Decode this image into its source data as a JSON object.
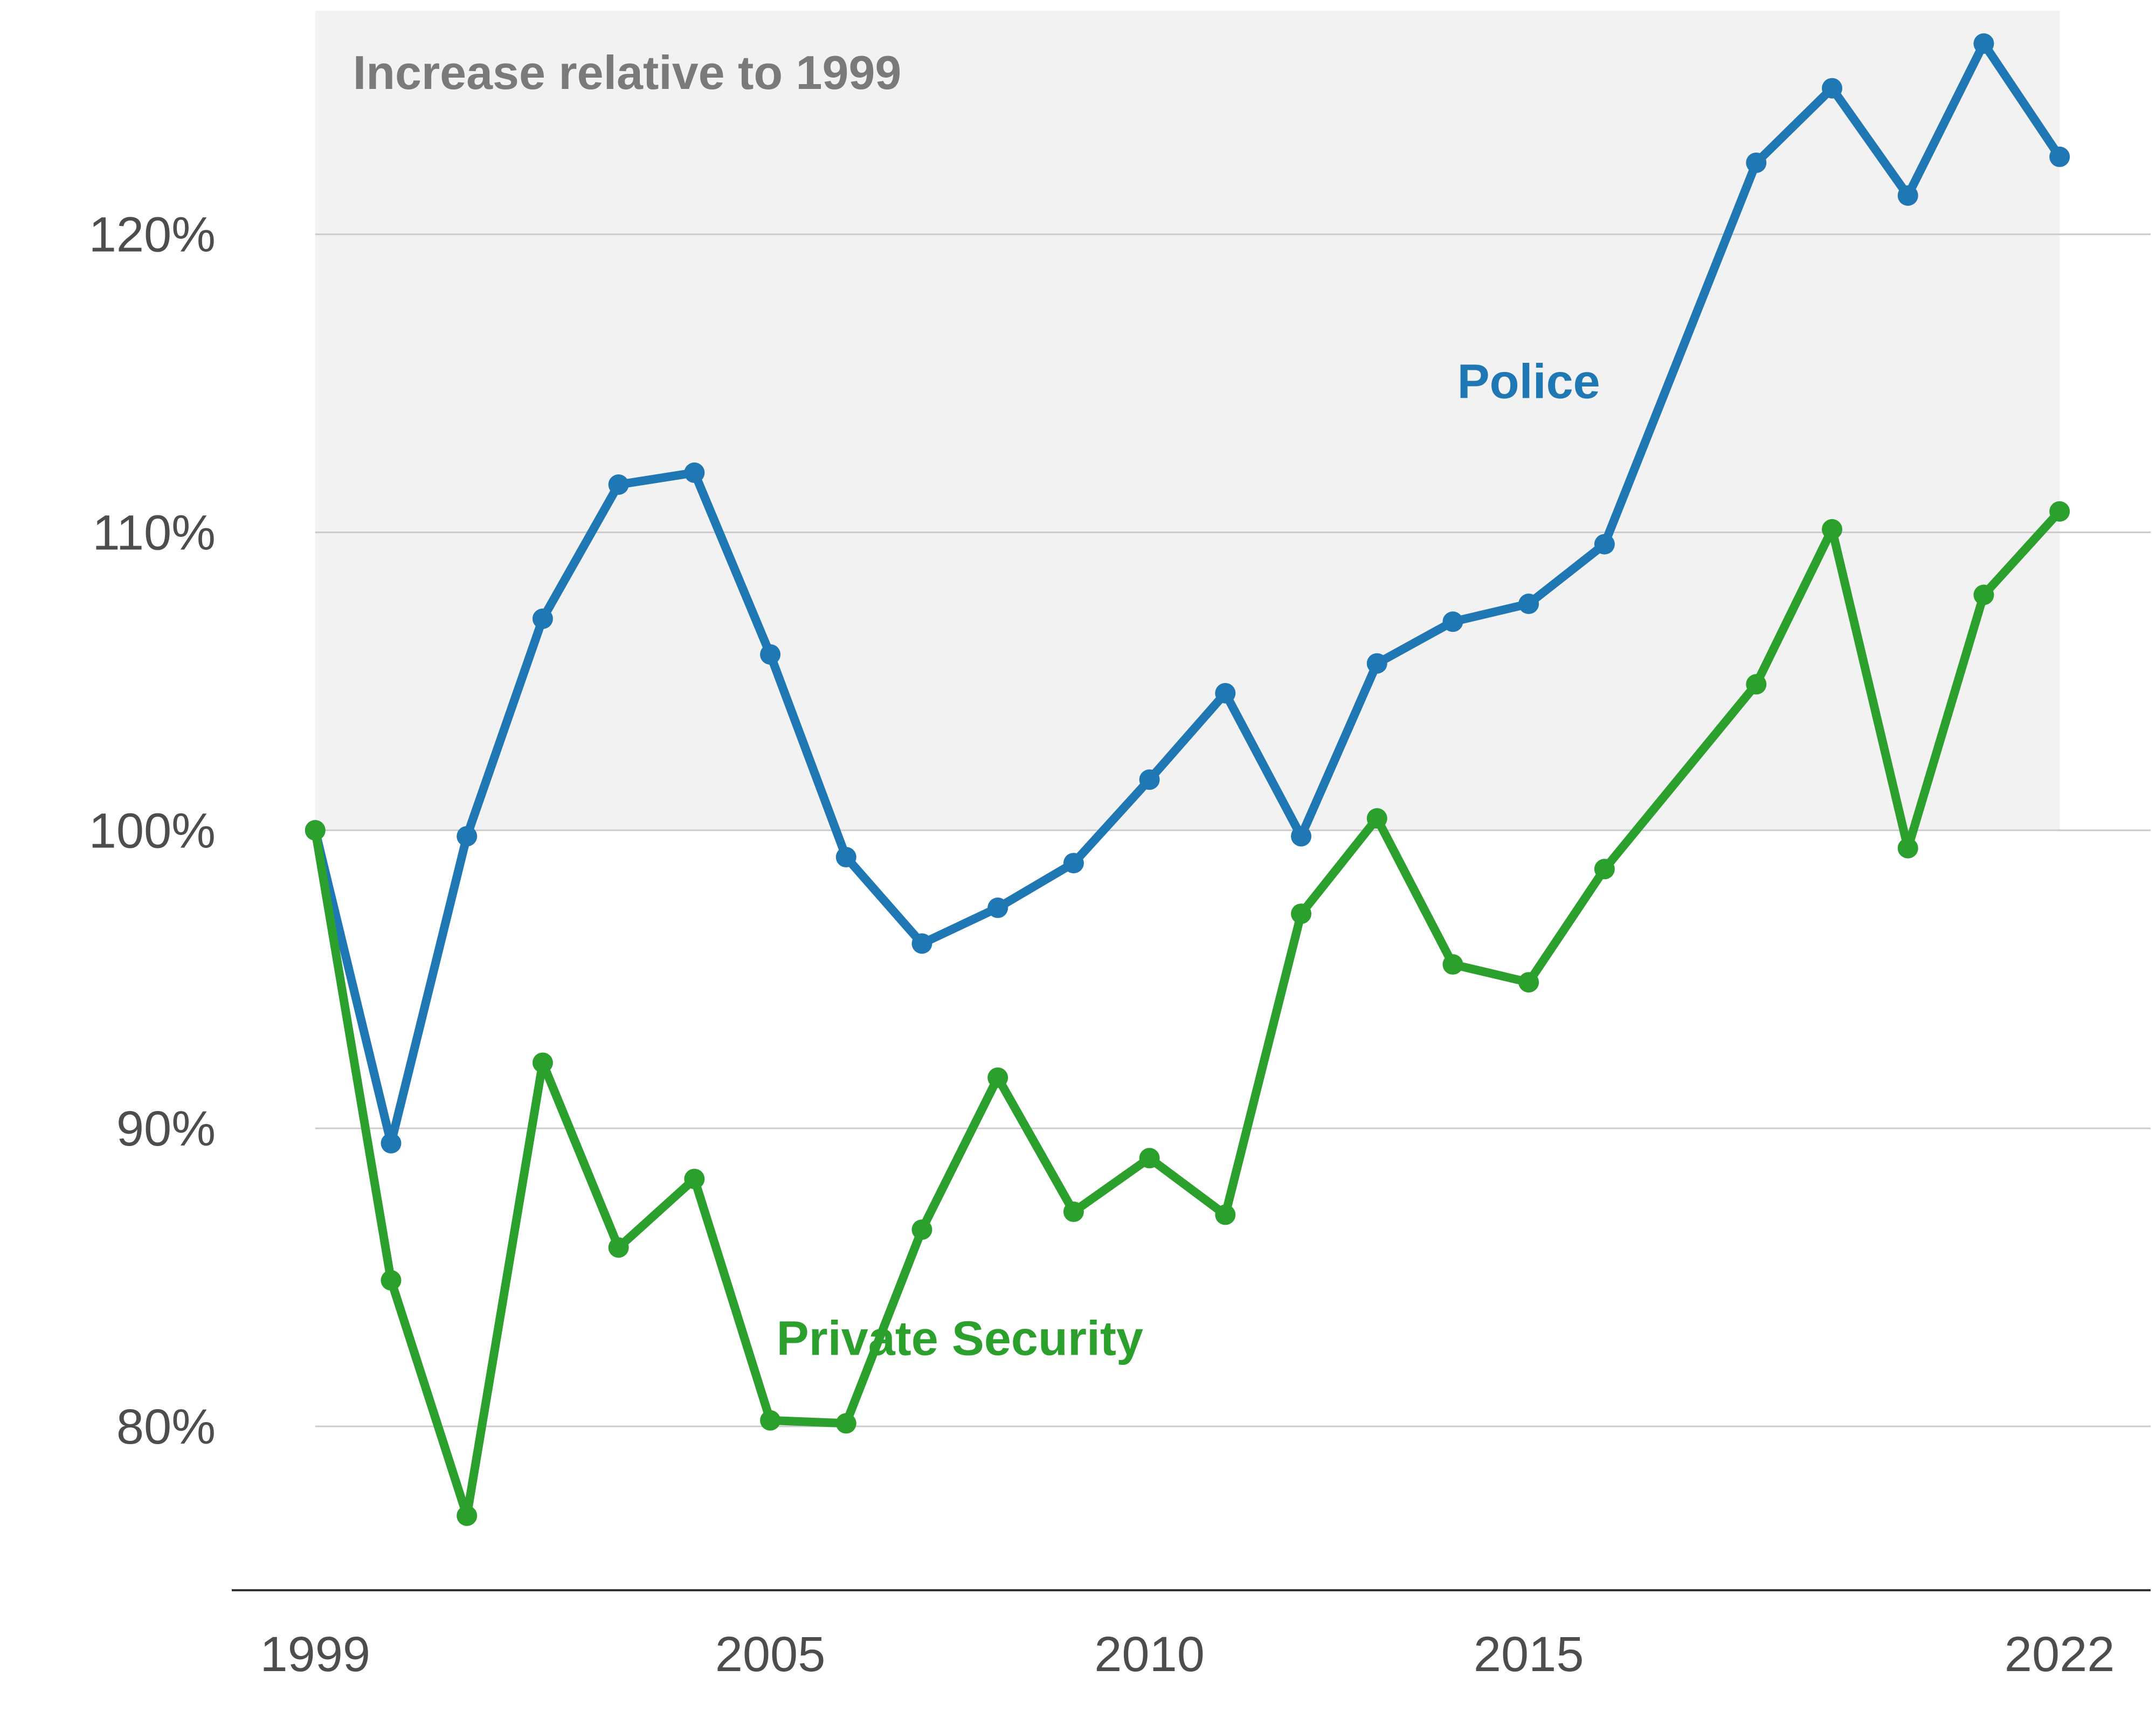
{
  "chart_data": {
    "type": "line",
    "region_label": "Increase relative to 1999",
    "x": [
      1999,
      2000,
      2001,
      2002,
      2003,
      2004,
      2005,
      2006,
      2007,
      2008,
      2009,
      2010,
      2011,
      2012,
      2013,
      2014,
      2015,
      2016,
      2018,
      2019,
      2020,
      2021,
      2022
    ],
    "x_ticks": [
      "1999",
      "2005",
      "2010",
      "2015",
      "2022"
    ],
    "y_ticks": [
      "80%",
      "90%",
      "100%",
      "110%",
      "120%"
    ],
    "ylim": [
      74.5,
      127.5
    ],
    "xlim": [
      1997.9,
      2023.2
    ],
    "grid": "horizontal",
    "highlight_band": {
      "from_x": 1999,
      "to_x": 2022,
      "from_y": 100,
      "to_y": 127.5
    },
    "series": [
      {
        "name": "Police",
        "color": "#1f77b4",
        "values": [
          100,
          89.5,
          99.8,
          107.1,
          111.6,
          112.0,
          105.9,
          99.1,
          96.2,
          97.4,
          98.9,
          101.7,
          104.6,
          99.8,
          105.6,
          107.0,
          107.6,
          109.6,
          122.4,
          124.9,
          121.3,
          126.4,
          122.6
        ]
      },
      {
        "name": "Private Security",
        "color": "#2ca02c",
        "values": [
          100,
          84.9,
          77.0,
          92.2,
          86.0,
          88.3,
          80.2,
          80.1,
          86.6,
          91.7,
          87.2,
          89.0,
          87.1,
          97.2,
          100.4,
          95.5,
          94.9,
          98.7,
          104.9,
          110.1,
          99.4,
          107.9,
          110.7
        ]
      }
    ],
    "colors": {
      "band": "#f2f2f2",
      "grid": "#cccccc",
      "axis": "#4d4d4d",
      "text": "#4d4d4d",
      "region_text": "#7a7a7a"
    }
  }
}
